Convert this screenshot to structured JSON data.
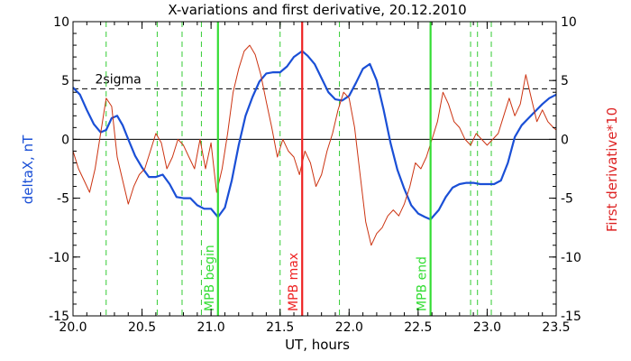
{
  "chart_data": {
    "type": "line",
    "title": "X-variations and first derivative, 20.12.2010",
    "xlabel": "UT, hours",
    "ylabel_left": "deltaX, nT",
    "ylabel_right": "First derivative*10",
    "xlim": [
      20.0,
      23.5
    ],
    "ylim": [
      -15,
      10
    ],
    "y2lim": [
      -15,
      10
    ],
    "x_ticks": [
      20.0,
      20.5,
      21.0,
      21.5,
      22.0,
      22.5,
      23.0,
      23.5
    ],
    "x_tick_labels": [
      "20.0",
      "20.5",
      "21.0",
      "21.5",
      "22.0",
      "22.5",
      "23.0",
      "23.5"
    ],
    "y_ticks": [
      -15,
      -10,
      -5,
      0,
      5,
      10
    ],
    "y_tick_labels": [
      "-15",
      "-10",
      "-5",
      "0",
      "5",
      "10"
    ],
    "zero_line": 0,
    "sigma_line": {
      "y": 4.3,
      "label": "2sigma",
      "color": "#000000"
    },
    "dashed_vlines": [
      20.24,
      20.61,
      20.79,
      20.93,
      21.5,
      21.93,
      22.88,
      22.93,
      23.03
    ],
    "markers": [
      {
        "x": 21.05,
        "label": "MPB begin",
        "color": "#33dd33"
      },
      {
        "x": 21.66,
        "label": "MPB max",
        "color": "#ee2222"
      },
      {
        "x": 22.59,
        "label": "MPB end",
        "color": "#33dd33"
      }
    ],
    "series": [
      {
        "name": "deltaX, nT",
        "color": "#1a4fd6",
        "axis": "left",
        "x": [
          20.0,
          20.05,
          20.1,
          20.15,
          20.2,
          20.24,
          20.28,
          20.32,
          20.36,
          20.4,
          20.45,
          20.5,
          20.55,
          20.6,
          20.65,
          20.7,
          20.75,
          20.8,
          20.85,
          20.9,
          20.95,
          21.0,
          21.05,
          21.1,
          21.15,
          21.2,
          21.25,
          21.3,
          21.35,
          21.4,
          21.45,
          21.5,
          21.55,
          21.6,
          21.66,
          21.7,
          21.75,
          21.8,
          21.85,
          21.9,
          21.95,
          22.0,
          22.05,
          22.1,
          22.15,
          22.2,
          22.25,
          22.3,
          22.35,
          22.4,
          22.45,
          22.5,
          22.55,
          22.59,
          22.65,
          22.7,
          22.75,
          22.8,
          22.85,
          22.9,
          22.95,
          23.0,
          23.05,
          23.1,
          23.15,
          23.2,
          23.25,
          23.3,
          23.35,
          23.4,
          23.45,
          23.5
        ],
        "values": [
          4.4,
          3.8,
          2.5,
          1.3,
          0.6,
          0.8,
          1.8,
          2.0,
          1.2,
          0.0,
          -1.4,
          -2.4,
          -3.2,
          -3.2,
          -3.0,
          -3.8,
          -4.9,
          -5.0,
          -5.0,
          -5.6,
          -5.9,
          -5.9,
          -6.6,
          -5.8,
          -3.5,
          -0.5,
          2.0,
          3.6,
          4.9,
          5.6,
          5.7,
          5.7,
          6.2,
          7.0,
          7.5,
          7.1,
          6.4,
          5.2,
          4.0,
          3.4,
          3.3,
          3.7,
          4.8,
          6.0,
          6.4,
          5.0,
          2.5,
          -0.3,
          -2.6,
          -4.2,
          -5.6,
          -6.3,
          -6.6,
          -6.8,
          -6.0,
          -4.9,
          -4.1,
          -3.8,
          -3.7,
          -3.7,
          -3.8,
          -3.8,
          -3.8,
          -3.5,
          -2.0,
          0.2,
          1.2,
          1.8,
          2.4,
          3.0,
          3.5,
          3.8
        ]
      },
      {
        "name": "First derivative*10",
        "color": "#cc3311",
        "axis": "right",
        "x": [
          20.0,
          20.04,
          20.08,
          20.12,
          20.16,
          20.2,
          20.24,
          20.28,
          20.32,
          20.36,
          20.4,
          20.44,
          20.48,
          20.52,
          20.56,
          20.6,
          20.64,
          20.68,
          20.72,
          20.76,
          20.8,
          20.84,
          20.88,
          20.92,
          20.96,
          21.0,
          21.04,
          21.08,
          21.12,
          21.16,
          21.2,
          21.24,
          21.28,
          21.32,
          21.36,
          21.4,
          21.44,
          21.48,
          21.52,
          21.56,
          21.6,
          21.64,
          21.68,
          21.72,
          21.76,
          21.8,
          21.84,
          21.88,
          21.92,
          21.96,
          22.0,
          22.04,
          22.08,
          22.12,
          22.16,
          22.2,
          22.24,
          22.28,
          22.32,
          22.36,
          22.4,
          22.44,
          22.48,
          22.52,
          22.56,
          22.6,
          22.64,
          22.68,
          22.72,
          22.76,
          22.8,
          22.84,
          22.88,
          22.92,
          22.96,
          23.0,
          23.04,
          23.08,
          23.12,
          23.16,
          23.2,
          23.24,
          23.28,
          23.32,
          23.36,
          23.4,
          23.44,
          23.48,
          23.5
        ],
        "values": [
          -1.0,
          -2.5,
          -3.5,
          -4.5,
          -2.5,
          0.5,
          3.5,
          2.8,
          -1.5,
          -3.5,
          -5.5,
          -4.0,
          -3.0,
          -2.5,
          -1.0,
          0.5,
          -0.3,
          -2.5,
          -1.5,
          0.0,
          -0.5,
          -1.5,
          -2.5,
          0.0,
          -2.5,
          -0.3,
          -4.5,
          -2.5,
          0.5,
          4.0,
          6.0,
          7.5,
          8.0,
          7.2,
          5.5,
          3.2,
          1.0,
          -1.5,
          0.0,
          -1.0,
          -1.5,
          -3.0,
          -1.0,
          -2.0,
          -4.0,
          -3.0,
          -1.0,
          0.5,
          2.5,
          4.0,
          3.5,
          1.0,
          -3.0,
          -7.0,
          -9.0,
          -8.0,
          -7.5,
          -6.5,
          -6.0,
          -6.5,
          -5.5,
          -4.0,
          -2.0,
          -2.5,
          -1.5,
          0.0,
          1.5,
          4.0,
          3.0,
          1.5,
          1.0,
          0.0,
          -0.5,
          0.5,
          0.0,
          -0.5,
          0.0,
          0.5,
          2.0,
          3.5,
          2.0,
          3.0,
          5.5,
          3.5,
          1.5,
          2.5,
          1.5,
          1.0,
          0.8
        ]
      }
    ]
  }
}
